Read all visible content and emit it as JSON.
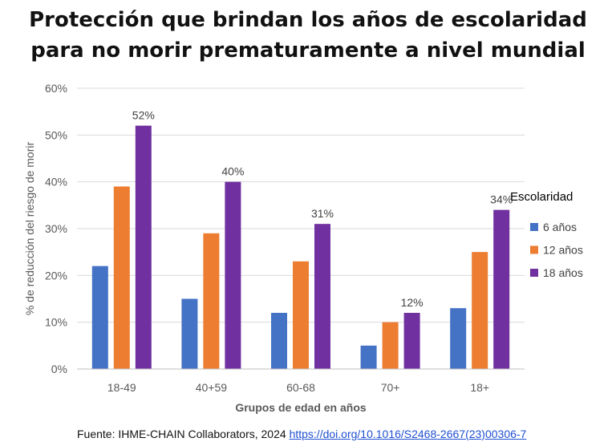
{
  "title": {
    "line1": "Protección que brindan los años de escolaridad",
    "line2": "para no morir prematuramente a nivel mundial"
  },
  "chart_data": {
    "type": "bar",
    "categories": [
      "18-49",
      "40+59",
      "60-68",
      "70+",
      "18+"
    ],
    "series": [
      {
        "name": "6 años",
        "color": "#4472c4",
        "values": [
          22,
          15,
          12,
          5,
          13
        ]
      },
      {
        "name": "12 años",
        "color": "#ed7d31",
        "values": [
          39,
          29,
          23,
          10,
          25
        ]
      },
      {
        "name": "18 años",
        "color": "#7030a0",
        "values": [
          52,
          40,
          31,
          12,
          34
        ]
      }
    ],
    "data_labels": {
      "series": "18 años",
      "labels": [
        "52%",
        "40%",
        "31%",
        "12%",
        "34%"
      ]
    },
    "xlabel": "Grupos  de edad en años",
    "ylabel": "% de reducción del riesgo de morir",
    "ylim": [
      0,
      60
    ],
    "yticks": [
      0,
      10,
      20,
      30,
      40,
      50,
      60
    ],
    "ytick_labels": [
      "0%",
      "10%",
      "20%",
      "30%",
      "40%",
      "50%",
      "60%"
    ],
    "grid": true,
    "legend": {
      "title": "Escolaridad",
      "position": "right"
    }
  },
  "source": {
    "prefix": "Fuente: IHME-CHAIN Collaborators, 2024 ",
    "link": "https://doi.org/10.1016/S2468-2667(23)00306-7"
  }
}
